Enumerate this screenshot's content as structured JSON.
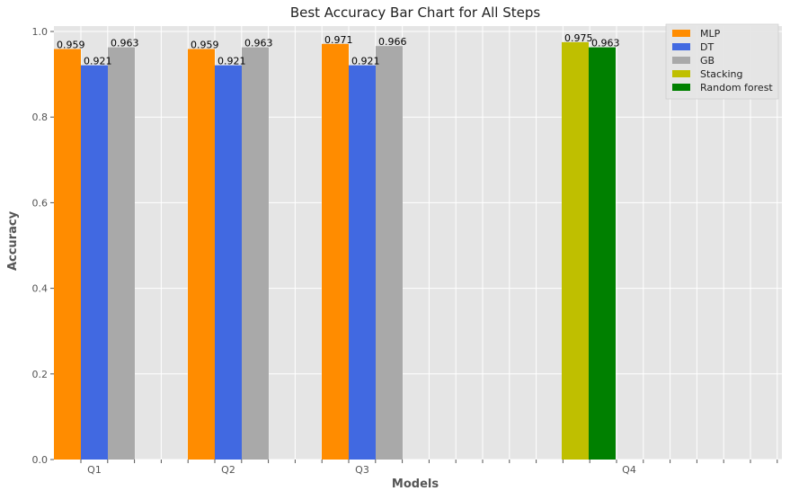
{
  "chart_data": {
    "type": "bar",
    "title": "Best Accuracy Bar Chart for All Steps",
    "xlabel": "Models",
    "ylabel": "Accuracy",
    "ylim": [
      0,
      1.0
    ],
    "yticks": [
      "0.0",
      "0.2",
      "0.4",
      "0.6",
      "0.8",
      "1.0"
    ],
    "categories": [
      "Q1",
      "Q2",
      "Q3",
      "Q4"
    ],
    "grid": true,
    "legend_position": "top-right",
    "series": [
      {
        "name": "MLP",
        "color": "#ff8c00",
        "values": [
          0.959,
          0.959,
          0.971,
          null
        ]
      },
      {
        "name": "DT",
        "color": "#4169e1",
        "values": [
          0.921,
          0.921,
          0.921,
          null
        ]
      },
      {
        "name": "GB",
        "color": "#a9a9a9",
        "values": [
          0.963,
          0.963,
          0.966,
          null
        ]
      },
      {
        "name": "Stacking",
        "color": "#bfbf00",
        "values": [
          null,
          null,
          null,
          0.975
        ]
      },
      {
        "name": "Random forest",
        "color": "#008000",
        "values": [
          null,
          null,
          null,
          0.963
        ]
      }
    ]
  }
}
